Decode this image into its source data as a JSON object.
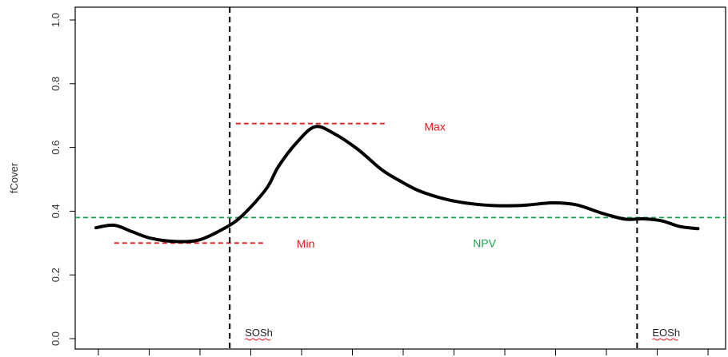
{
  "chart_data": {
    "type": "line",
    "ylabel": "fCover",
    "xlim": [
      0,
      100
    ],
    "ylim": [
      0,
      1
    ],
    "yticks": [
      0.0,
      0.2,
      0.4,
      0.6,
      0.8,
      1.0
    ],
    "ytick_labels": [
      "0.0",
      "0.2",
      "0.4",
      "0.6",
      "0.8",
      "1.0"
    ],
    "xtick_count": 13,
    "series": [
      {
        "color": "#000000",
        "x": [
          0,
          3,
          6,
          9,
          13,
          17,
          21,
          24,
          28,
          30,
          33,
          36,
          39,
          43,
          47,
          50,
          53,
          57,
          61,
          65,
          70,
          75,
          79,
          83,
          87,
          90,
          93,
          96,
          99
        ],
        "y": [
          0.348,
          0.356,
          0.335,
          0.315,
          0.305,
          0.31,
          0.345,
          0.385,
          0.47,
          0.54,
          0.615,
          0.665,
          0.645,
          0.595,
          0.53,
          0.495,
          0.465,
          0.44,
          0.425,
          0.418,
          0.418,
          0.426,
          0.42,
          0.395,
          0.375,
          0.376,
          0.37,
          0.352,
          0.345
        ]
      }
    ],
    "hlines": [
      {
        "y": 0.675,
        "x_from": 23,
        "x_to": 48,
        "color": "#e41a1c",
        "style": "dashed"
      },
      {
        "y": 0.3,
        "x_from": 3,
        "x_to": 28,
        "color": "#e41a1c",
        "style": "dashed"
      },
      {
        "y": 0.38,
        "full_width": true,
        "color": "#1aa04b",
        "style": "dashed"
      }
    ],
    "vlines": [
      {
        "x": 22,
        "color": "#000000",
        "style": "dashed"
      },
      {
        "x": 89,
        "color": "#000000",
        "style": "dashed"
      }
    ],
    "annotations": [
      {
        "text": "Max",
        "x": 54,
        "y": 0.665,
        "color": "#e41a1c"
      },
      {
        "text": "Min",
        "x": 33,
        "y": 0.298,
        "color": "#e41a1c"
      },
      {
        "text": "NPV",
        "x": 62,
        "y": 0.3,
        "color": "#1aa04b"
      },
      {
        "text": "SOSh",
        "x": 24.5,
        "y": 0.02,
        "color": "#222222",
        "underline": "#e41a1c"
      },
      {
        "text": "EOSh",
        "x": 91.5,
        "y": 0.02,
        "color": "#222222",
        "underline": "#e41a1c"
      }
    ],
    "grid": false,
    "legend": "none"
  }
}
